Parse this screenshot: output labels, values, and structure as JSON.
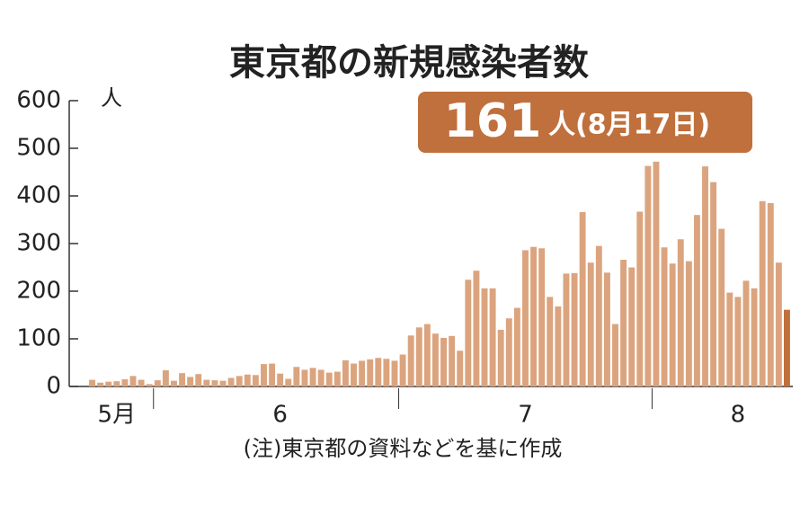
{
  "chart_data": {
    "type": "bar",
    "title": "東京都の新規感染者数",
    "y_unit": "人",
    "note": "(注)東京都の資料などを基に作成",
    "annotation": {
      "value": 161,
      "text": "人(8月17日)",
      "color": "#c0703c"
    },
    "categories": [
      null,
      null,
      null,
      "5月",
      null,
      null,
      null,
      null,
      null,
      null,
      null,
      null,
      null,
      null,
      null,
      null,
      null,
      null,
      null,
      null,
      null,
      null,
      null,
      "6",
      null,
      null,
      null,
      null,
      null,
      null,
      null,
      null,
      null,
      null,
      null,
      null,
      null,
      null,
      null,
      null,
      null,
      null,
      null,
      null,
      null,
      null,
      null,
      null,
      null,
      null,
      null,
      null,
      null,
      "7",
      null,
      null,
      null,
      null,
      null,
      null,
      null,
      null,
      null,
      null,
      null,
      null,
      null,
      null,
      null,
      null,
      null,
      null,
      null,
      null,
      null,
      null,
      null,
      null,
      null,
      "8",
      null,
      null,
      null,
      null,
      null,
      null
    ],
    "values": [
      14,
      8,
      10,
      11,
      15,
      22,
      14,
      5,
      13,
      34,
      12,
      28,
      20,
      26,
      14,
      13,
      12,
      18,
      22,
      25,
      24,
      47,
      48,
      27,
      16,
      41,
      35,
      39,
      35,
      29,
      31,
      55,
      48,
      54,
      57,
      60,
      58,
      54,
      67,
      107,
      124,
      131,
      111,
      102,
      106,
      75,
      224,
      243,
      206,
      206,
      119,
      143,
      165,
      286,
      293,
      290,
      188,
      168,
      237,
      238,
      366,
      260,
      295,
      239,
      131,
      266,
      250,
      367,
      463,
      472,
      292,
      258,
      309,
      263,
      360,
      462,
      429,
      331,
      197,
      188,
      222,
      206,
      389,
      385,
      260,
      161
    ],
    "color": "#dba47e",
    "last_color": "#c0703c",
    "ylim": [
      0,
      600
    ],
    "yticks": [
      0,
      100,
      200,
      300,
      400,
      500,
      600
    ]
  }
}
